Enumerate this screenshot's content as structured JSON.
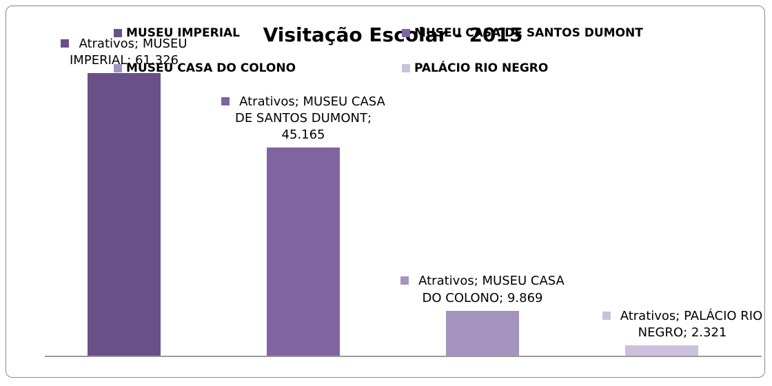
{
  "chart_data": {
    "type": "bar",
    "title": "Visitação Escolar - 2015",
    "categories": [
      "MUSEU IMPERIAL",
      "MUSEU CASA DE SANTOS DUMONT",
      "MUSEU CASA DO COLONO",
      "PALÁCIO RIO NEGRO"
    ],
    "values": [
      61326,
      45165,
      9869,
      2321
    ],
    "value_labels": [
      "Atrativos; MUSEU IMPERIAL; 61.326",
      "Atrativos; MUSEU CASA DE SANTOS DUMONT; 45.165",
      "Atrativos; MUSEU CASA DO COLONO; 9.869",
      "Atrativos; PALÁCIO RIO NEGRO; 2.321"
    ],
    "colors": [
      "#6a5088",
      "#8064a2",
      "#a593c0",
      "#cbc1dc"
    ],
    "ylim": [
      0,
      70000
    ]
  }
}
